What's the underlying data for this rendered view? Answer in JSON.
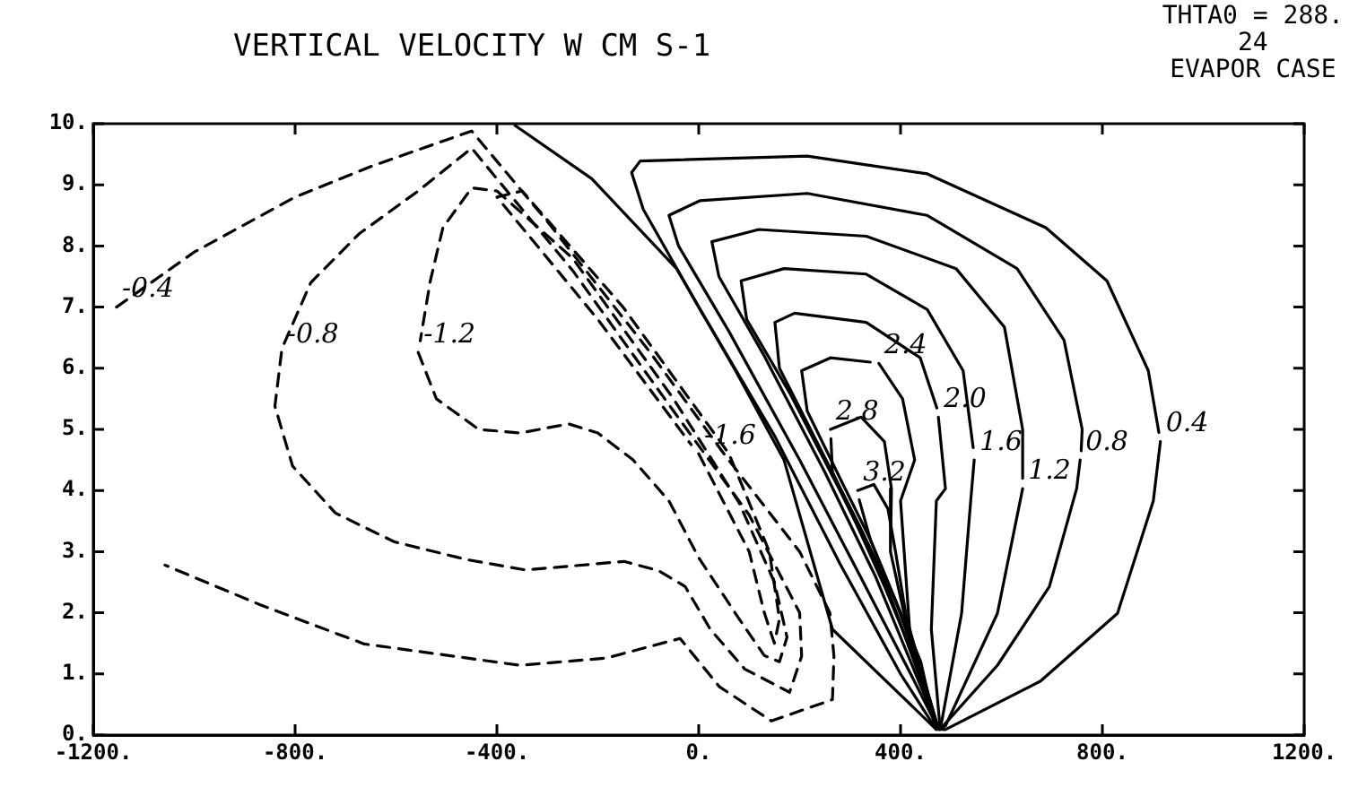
{
  "chart_data": {
    "type": "line",
    "title": "VERTICAL VELOCITY W  CM S-1",
    "annotations": [
      "THTA0 = 288.",
      "24",
      "EVAPOR CASE"
    ],
    "xlim": [
      -1200,
      1200
    ],
    "ylim": [
      0,
      10
    ],
    "xticks": [
      {
        "value": -1200,
        "label": "-1200."
      },
      {
        "value": -800,
        "label": "-800."
      },
      {
        "value": -400,
        "label": "-400."
      },
      {
        "value": 0,
        "label": "0."
      },
      {
        "value": 400,
        "label": "400."
      },
      {
        "value": 800,
        "label": "800."
      },
      {
        "value": 1200,
        "label": "1200."
      }
    ],
    "yticks": [
      {
        "value": 0,
        "label": "0."
      },
      {
        "value": 1,
        "label": "1."
      },
      {
        "value": 2,
        "label": "2."
      },
      {
        "value": 3,
        "label": "3."
      },
      {
        "value": 4,
        "label": "4."
      },
      {
        "value": 5,
        "label": "5."
      },
      {
        "value": 6,
        "label": "6."
      },
      {
        "value": 7,
        "label": "7."
      },
      {
        "value": 8,
        "label": "8."
      },
      {
        "value": 9,
        "label": "9."
      },
      {
        "value": 10,
        "label": "10."
      }
    ],
    "legend": false,
    "marker": "none",
    "series": [
      {
        "name": "-0.4",
        "color": "#000000",
        "line_style": "dashed",
        "x": [
          -1154,
          -1000,
          -800,
          -650,
          -450,
          -300,
          -100,
          50,
          200,
          260,
          268,
          265,
          144,
          41,
          -37,
          -183,
          -354,
          -663,
          -869,
          -1058
        ],
        "values": [
          7.0,
          7.9,
          8.8,
          9.3,
          9.88,
          8.4,
          6.3,
          4.6,
          3.0,
          2.0,
          1.29,
          0.58,
          0.23,
          0.79,
          1.58,
          1.26,
          1.14,
          1.49,
          2.13,
          2.78
        ]
      },
      {
        "name": "-0.8",
        "color": "#000000",
        "line_style": "dashed",
        "x": [
          -827,
          -840,
          -805,
          -720,
          -603,
          -460,
          -343,
          -148,
          -80,
          -27,
          23,
          91,
          180,
          204,
          200,
          100,
          -50,
          -250,
          -450,
          -556,
          -673,
          -769,
          -822
        ],
        "values": [
          6.26,
          5.38,
          4.4,
          3.63,
          3.16,
          2.87,
          2.7,
          2.84,
          2.69,
          2.43,
          1.73,
          1.08,
          0.7,
          1.29,
          2.0,
          3.6,
          5.3,
          7.6,
          9.6,
          8.9,
          8.2,
          7.4,
          6.4
        ]
      },
      {
        "name": "-1.2",
        "color": "#000000",
        "line_style": "dashed",
        "x": [
          -556,
          -520,
          -436,
          -354,
          -258,
          -200,
          -130,
          -59,
          0,
          80,
          130,
          160,
          175,
          150,
          80,
          -50,
          -250,
          -400,
          -450,
          -507,
          -532,
          -552
        ],
        "values": [
          6.26,
          5.5,
          5.0,
          4.94,
          5.09,
          4.94,
          4.5,
          3.83,
          2.9,
          1.9,
          1.3,
          1.2,
          1.6,
          2.5,
          3.8,
          5.5,
          7.8,
          8.9,
          8.95,
          8.3,
          7.43,
          6.45
        ]
      },
      {
        "name": "-1.6",
        "color": "#000000",
        "line_style": "dashed",
        "x": [
          0,
          100,
          130,
          150,
          160,
          140,
          60,
          -150,
          -350,
          -400,
          -200,
          -15
        ],
        "values": [
          4.6,
          3.0,
          2.0,
          1.5,
          1.9,
          3.0,
          4.6,
          7.0,
          8.9,
          8.8,
          6.8,
          4.75
        ]
      },
      {
        "color": "#000000",
        "line_style": "solid",
        "x": [
          -364,
          -212,
          -44,
          73,
          169,
          265,
          471
        ],
        "values": [
          9.97,
          9.1,
          7.63,
          5.96,
          4.5,
          1.73,
          0.09
        ]
      },
      {
        "name": "0.4",
        "color": "#000000",
        "line_style": "solid",
        "x": [
          915,
          901,
          830,
          677,
          489,
          470,
          400,
          280,
          150,
          0,
          -110,
          -133,
          -116,
          215,
          453,
          688,
          809,
          891,
          912
        ],
        "values": [
          4.8,
          3.83,
          1.99,
          0.88,
          0.09,
          0.1,
          1.0,
          2.8,
          4.9,
          7.0,
          8.6,
          9.2,
          9.39,
          9.47,
          9.18,
          8.3,
          7.43,
          5.96,
          4.95
        ]
      },
      {
        "name": "0.8",
        "color": "#000000",
        "line_style": "solid",
        "x": [
          756,
          749,
          695,
          592,
          478,
          475,
          420,
          320,
          200,
          60,
          -40,
          -59,
          2,
          215,
          453,
          631,
          724,
          760,
          758
        ],
        "values": [
          4.5,
          4.03,
          2.43,
          1.14,
          0.09,
          0.1,
          1.0,
          2.6,
          4.5,
          6.6,
          8.0,
          8.5,
          8.74,
          8.86,
          8.5,
          7.63,
          6.46,
          5.0,
          4.65
        ]
      },
      {
        "name": "1.2",
        "color": "#000000",
        "line_style": "solid",
        "x": [
          642,
          592,
          489,
          475,
          430,
          350,
          250,
          130,
          40,
          26,
          119,
          332,
          510,
          606,
          642,
          642
        ],
        "values": [
          4.03,
          1.99,
          0.15,
          0.1,
          1.0,
          2.6,
          4.3,
          6.2,
          7.5,
          8.07,
          8.27,
          8.16,
          7.63,
          6.67,
          5.0,
          4.2
        ]
      },
      {
        "name": "1.6",
        "color": "#000000",
        "line_style": "solid",
        "x": [
          546,
          539,
          521,
          480,
          475,
          440,
          370,
          280,
          180,
          95,
          84,
          169,
          332,
          453,
          524,
          544
        ],
        "values": [
          4.5,
          3.83,
          1.99,
          0.15,
          0.1,
          0.9,
          2.5,
          4.0,
          5.6,
          6.8,
          7.43,
          7.63,
          7.54,
          6.96,
          5.96,
          4.7
        ]
      },
      {
        "name": "2.0",
        "color": "#000000",
        "line_style": "solid",
        "x": [
          475,
          489,
          471,
          461,
          478,
          475,
          450,
          390,
          320,
          240,
          160,
          151,
          190,
          332,
          439,
          472
        ],
        "values": [
          5.2,
          4.03,
          3.83,
          1.73,
          0.15,
          0.1,
          0.8,
          2.2,
          3.4,
          4.7,
          6.0,
          6.75,
          6.9,
          6.75,
          6.17,
          5.35
        ]
      },
      {
        "name": "2.4",
        "color": "#000000",
        "line_style": "solid",
        "x": [
          357,
          404,
          428,
          400,
          418,
          475,
          450,
          400,
          340,
          280,
          215,
          204,
          261,
          340
        ],
        "values": [
          6.08,
          5.5,
          4.5,
          3.83,
          1.73,
          0.1,
          0.8,
          2.0,
          3.2,
          4.2,
          5.3,
          5.96,
          6.17,
          6.1
        ]
      },
      {
        "name": "2.8",
        "color": "#000000",
        "line_style": "solid",
        "x": [
          261,
          322,
          368,
          382,
          380,
          420,
          475,
          460,
          420,
          370,
          310,
          265,
          262
        ],
        "values": [
          5.0,
          5.2,
          4.8,
          4.03,
          3.0,
          1.5,
          0.1,
          0.5,
          1.4,
          2.4,
          3.5,
          4.3,
          4.85
        ]
      },
      {
        "name": "3.2",
        "color": "#000000",
        "line_style": "solid",
        "x": [
          315,
          347,
          375,
          390,
          410,
          440,
          470,
          440,
          390,
          340,
          318
        ],
        "values": [
          4.0,
          4.1,
          3.7,
          3.0,
          2.0,
          1.0,
          0.1,
          1.2,
          2.2,
          3.2,
          3.85
        ]
      }
    ]
  }
}
